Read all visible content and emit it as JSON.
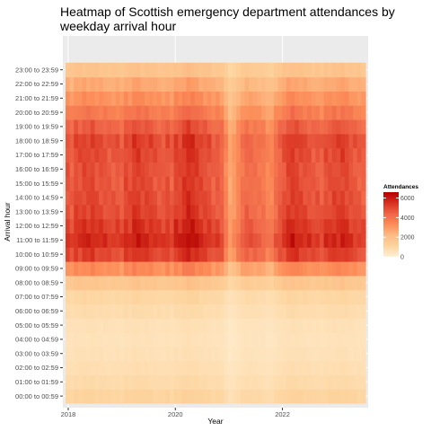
{
  "chart_data": {
    "type": "heatmap",
    "title": "Heatmap of Scottish emergency department attendances by weekday arrival hour",
    "title_lines": [
      "Heatmap of Scottish emergency department attendances by",
      "weekday arrival hour"
    ],
    "xlabel": "Year",
    "ylabel": "Arrival hour",
    "x_ticks": [
      "2018",
      "2020",
      "2022"
    ],
    "x_tick_values": [
      2018,
      2020,
      2022
    ],
    "xlim": [
      2017.9,
      2023.6
    ],
    "x_start": 2017.95,
    "x_end": 2023.55,
    "y_categories": [
      "00:00 to 00:59",
      "01:00 to 01:59",
      "02:00 to 02:59",
      "03:00 to 03:59",
      "04:00 to 04:59",
      "05:00 to 05:59",
      "06:00 to 06:59",
      "07:00 to 07:59",
      "08:00 to 08:59",
      "09:00 to 09:59",
      "10:00 to 10:59",
      "11:00 to 11:59",
      "12:00 to 12:59",
      "13:00 to 13:59",
      "14:00 to 14:59",
      "15:00 to 15:59",
      "16:00 to 16:59",
      "17:00 to 17:59",
      "18:00 to 18:59",
      "19:00 to 19:59",
      "20:00 to 20:59",
      "21:00 to 21:59",
      "22:00 to 22:59",
      "23:00 to 23:59"
    ],
    "hourly_baseline": [
      1100,
      850,
      700,
      600,
      550,
      600,
      800,
      1000,
      1700,
      3300,
      5100,
      5600,
      5300,
      5000,
      4900,
      4800,
      4800,
      4900,
      5000,
      4500,
      3800,
      3200,
      2600,
      1800
    ],
    "monthly_index": [
      0.98,
      0.92,
      1.02,
      1.0,
      1.04,
      1.02,
      1.05,
      1.0,
      1.0,
      0.98,
      0.96,
      0.95,
      0.97,
      0.92,
      1.03,
      1.0,
      1.08,
      1.08,
      1.03,
      1.03,
      1.02,
      0.99,
      0.96,
      0.95,
      1.0,
      0.93,
      1.05,
      1.03,
      1.1,
      1.15,
      1.12,
      1.08,
      1.03,
      1.0,
      0.99,
      0.92,
      0.95,
      0.9,
      0.72,
      0.55,
      0.62,
      0.72,
      0.82,
      0.88,
      0.86,
      0.84,
      0.82,
      0.8,
      0.72,
      0.72,
      0.85,
      0.92,
      0.98,
      1.05,
      1.08,
      1.05,
      1.02,
      1.0,
      0.98,
      0.95,
      0.96,
      0.92,
      1.0,
      1.0,
      1.03,
      1.03,
      1.06,
      1.03,
      0.98,
      0.96,
      0.94,
      0.92
    ],
    "legend": {
      "title": "Attendances",
      "ticks": [
        "0",
        "2000",
        "4000",
        "6000"
      ],
      "tick_values": [
        0,
        2000,
        4000,
        6000
      ],
      "range": [
        0,
        6600
      ]
    },
    "colors": {
      "low": "#fee8c8",
      "scale": [
        "#fff0d6",
        "#fdd49e",
        "#fdbb84",
        "#fc8d59",
        "#ef6548",
        "#d7301f",
        "#b30000"
      ],
      "panel": "#ebebeb",
      "grid": "#ffffff"
    },
    "grid": true,
    "legend_position": "right"
  }
}
